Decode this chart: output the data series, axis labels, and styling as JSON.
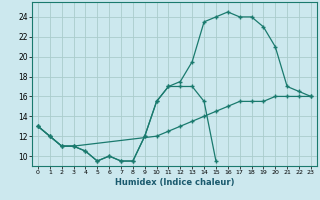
{
  "xlabel": "Humidex (Indice chaleur)",
  "ylabel": "",
  "background_color": "#cce8ee",
  "grid_color": "#aacccc",
  "line_color": "#1a7a6e",
  "xlim": [
    -0.5,
    23.5
  ],
  "ylim": [
    9.0,
    25.5
  ],
  "xticks": [
    0,
    1,
    2,
    3,
    4,
    5,
    6,
    7,
    8,
    9,
    10,
    11,
    12,
    13,
    14,
    15,
    16,
    17,
    18,
    19,
    20,
    21,
    22,
    23
  ],
  "yticks": [
    10,
    12,
    14,
    16,
    18,
    20,
    22,
    24
  ],
  "series": [
    {
      "x": [
        0,
        1,
        2,
        3,
        4,
        5,
        6,
        7,
        8,
        9,
        10,
        11,
        12,
        13,
        14,
        15
      ],
      "y": [
        13,
        12,
        11,
        11,
        10.5,
        9.5,
        10,
        9.5,
        9.5,
        12,
        15.5,
        17,
        17,
        17,
        15.5,
        9.5
      ]
    },
    {
      "x": [
        0,
        1,
        2,
        3,
        4,
        5,
        6,
        7,
        8,
        9,
        10,
        11,
        12,
        13,
        14,
        15,
        16,
        17,
        18,
        19,
        20,
        21,
        22,
        23
      ],
      "y": [
        13,
        12,
        11,
        11,
        10.5,
        9.5,
        10,
        9.5,
        9.5,
        12,
        15.5,
        17,
        17.5,
        19.5,
        23.5,
        24,
        24.5,
        24,
        24,
        23,
        21,
        17,
        16.5,
        16
      ]
    },
    {
      "x": [
        0,
        1,
        2,
        3,
        10,
        11,
        12,
        13,
        14,
        15,
        16,
        17,
        18,
        19,
        20,
        21,
        22,
        23
      ],
      "y": [
        13,
        12,
        11,
        11,
        12,
        12.5,
        13,
        13.5,
        14,
        14.5,
        15,
        15.5,
        15.5,
        15.5,
        16,
        16,
        16,
        16
      ]
    }
  ]
}
